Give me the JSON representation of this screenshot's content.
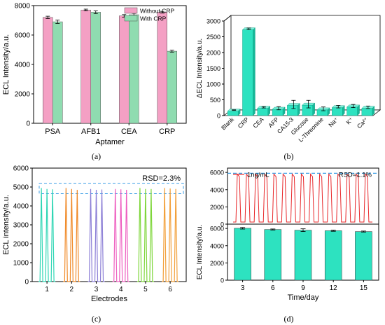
{
  "colors": {
    "pink": "#f4a0c4",
    "green": "#8fdcb0",
    "teal": "#2de2c0",
    "red": "#e8272a",
    "dash": "#3b9ee6"
  },
  "captions": {
    "a": "(a)",
    "b": "(b)",
    "c": "(c)",
    "d": "(d)"
  },
  "chart_data": [
    {
      "type": "bar",
      "panel": "a",
      "categories": [
        "PSA",
        "AFB1",
        "CEA",
        "CRP"
      ],
      "series": [
        {
          "name": "Without CRP",
          "values": [
            7200,
            7700,
            7300,
            7550
          ],
          "errors": [
            80,
            60,
            90,
            60
          ],
          "color": "#f4a0c4"
        },
        {
          "name": "With CRP",
          "values": [
            6900,
            7550,
            7380,
            4900
          ],
          "errors": [
            110,
            90,
            90,
            70
          ],
          "color": "#8fdcb0"
        }
      ],
      "xlabel": "Aptamer",
      "ylabel": "ECL Intensity/a.u.",
      "ylim": [
        0,
        8000
      ],
      "yticks": [
        0,
        2000,
        4000,
        6000,
        8000
      ],
      "legend": "top-right",
      "grid": false
    },
    {
      "type": "bar",
      "panel": "b",
      "style": "3d",
      "categories": [
        "Blank",
        "CRP",
        "CEA",
        "AFP",
        "CA15-3",
        "Glucose",
        "L-Threonine",
        "Na⁺",
        "K⁺",
        "Ca²⁺"
      ],
      "values": [
        140,
        2720,
        230,
        200,
        320,
        330,
        180,
        250,
        270,
        230
      ],
      "errors": [
        10,
        25,
        20,
        50,
        130,
        120,
        60,
        40,
        50,
        40
      ],
      "ylabel": "ΔECL Intensity/a.u.",
      "ylim": [
        0,
        3000
      ],
      "yticks": [
        0,
        500,
        1000,
        1500,
        2000,
        2500,
        3000
      ],
      "grid": false
    },
    {
      "type": "line",
      "panel": "c",
      "xlabel": "Electrodes",
      "ylabel": "ECL intensity/a.u.",
      "categories": [
        "1",
        "2",
        "3",
        "4",
        "5",
        "6"
      ],
      "ylim": [
        0,
        6000
      ],
      "yticks": [
        0,
        1000,
        2000,
        3000,
        4000,
        5000,
        6000
      ],
      "annotation": "RSD=2.3%",
      "series": [
        {
          "electrode": "1",
          "color": "#2fd6b4",
          "peaks": [
            4950,
            4900,
            4880
          ]
        },
        {
          "electrode": "2",
          "color": "#f08a28",
          "peaks": [
            4950,
            4900,
            4850
          ]
        },
        {
          "electrode": "3",
          "color": "#8c7fd6",
          "peaks": [
            4900,
            4850,
            4870
          ]
        },
        {
          "electrode": "4",
          "color": "#ee5fc0",
          "peaks": [
            4900,
            4880,
            4850
          ]
        },
        {
          "electrode": "5",
          "color": "#7ed63a",
          "peaks": [
            4950,
            4900,
            4900
          ]
        },
        {
          "electrode": "6",
          "color": "#f2a03a",
          "peaks": [
            4950,
            4920,
            4900
          ]
        }
      ],
      "band": [
        4650,
        5200
      ]
    },
    {
      "type": "line",
      "panel": "d-top",
      "series": [
        {
          "name": "1ng/mL",
          "color": "#e8272a"
        }
      ],
      "peak_count": 15,
      "peak_value": 5800,
      "reference_line": 5900,
      "ylim": [
        0,
        6500
      ],
      "yticks": [
        0,
        2000,
        4000,
        6000
      ],
      "annotation": "RSD=1.1%",
      "legend": "top-left"
    },
    {
      "type": "bar",
      "panel": "d-bottom",
      "categories": [
        "3",
        "6",
        "9",
        "12",
        "15"
      ],
      "values": [
        6020,
        5880,
        5800,
        5740,
        5640
      ],
      "errors": [
        90,
        60,
        160,
        70,
        60
      ],
      "xlabel": "Time/day",
      "ylabel": "ECL Intensity/a.u.",
      "ylim": [
        0,
        6500
      ],
      "yticks": [
        0,
        2000,
        4000,
        6000
      ],
      "color": "#2de2c0"
    }
  ]
}
